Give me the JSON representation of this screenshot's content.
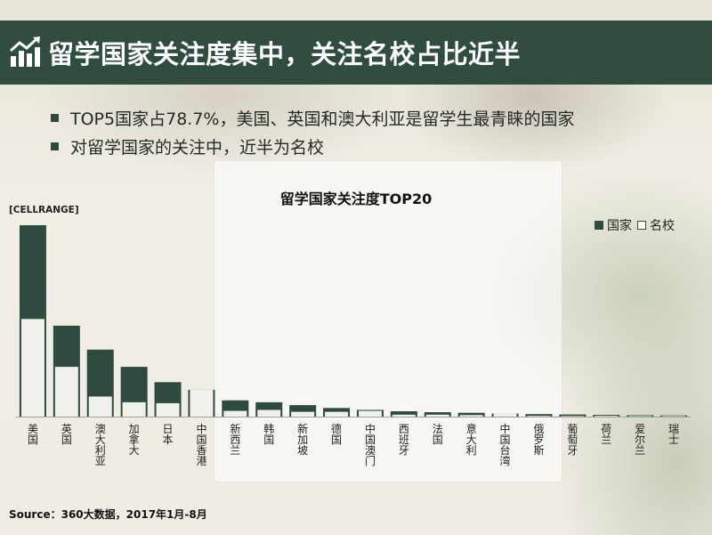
{
  "header": {
    "title": "留学国家关注度集中，关注名校占比近半",
    "icon": "bar-chart-icon"
  },
  "bullets": [
    "TOP5国家占78.7%，美国、英国和澳大利亚是留学生最青睐的国家",
    "对留学国家的关注中，近半为名校"
  ],
  "source": "Source：360大数据，2017年1月-8月",
  "colors": {
    "header_bg": "#304d40",
    "country": "#2f4b3f",
    "school": "#f1f1ec"
  },
  "chart_data": {
    "type": "bar",
    "title": "留学国家关注度TOP20",
    "data_label_placeholder": "[CELLRANGE]",
    "legend_position": "top-right",
    "categories": [
      "美国",
      "英国",
      "澳大利亚",
      "加拿大",
      "日本",
      "中国香港",
      "新西兰",
      "韩国",
      "新加坡",
      "德国",
      "中国澳门",
      "西班牙",
      "法国",
      "意大利",
      "中国台湾",
      "俄罗斯",
      "葡萄牙",
      "荷兰",
      "爱尔兰",
      "瑞士"
    ],
    "series": [
      {
        "name": "国家",
        "values": [
          100,
          47.5,
          35,
          26,
          18,
          14,
          8.5,
          7.5,
          6,
          4.5,
          3.5,
          2.8,
          2.3,
          2,
          1.6,
          1.3,
          1.1,
          0.9,
          0.7,
          0.6
        ]
      },
      {
        "name": "名校",
        "values": [
          51,
          26,
          10.5,
          7.5,
          7,
          14,
          3,
          3.5,
          2.5,
          2.5,
          3,
          1,
          1,
          0.8,
          1.6,
          0.4,
          0.3,
          0.4,
          0.3,
          0.3
        ]
      }
    ],
    "ylim": [
      0,
      100
    ],
    "grid": false
  }
}
